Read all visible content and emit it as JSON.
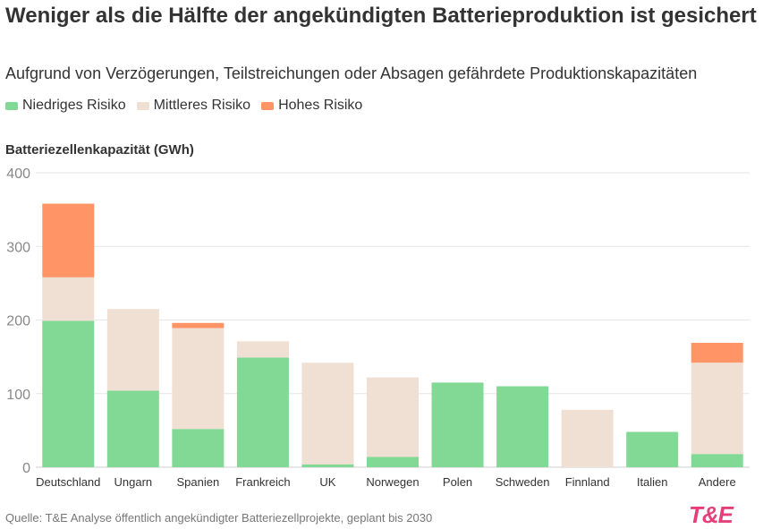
{
  "title": "Weniger als die Hälfte der angekündigten Batterieproduktion ist gesichert",
  "subtitle": "Aufgrund von Verzögerungen, Teilstreichungen oder Absagen gefährdete Produktionskapazitäten",
  "legend": [
    {
      "label": "Niedriges Risiko",
      "color": "#82d895"
    },
    {
      "label": "Mittleres Risiko",
      "color": "#f0e0d4"
    },
    {
      "label": "Hohes Risiko",
      "color": "#ff9566"
    }
  ],
  "source": "Quelle: T&E Analyse öffentlich angekündigter Batteriezellprojekte, geplant bis 2030",
  "logo": "T&E",
  "chart_data": {
    "type": "bar",
    "stacked": true,
    "ylabel": "Batteriezellenkapazität (GWh)",
    "ylim": [
      0,
      400
    ],
    "yticks": [
      0,
      100,
      200,
      300,
      400
    ],
    "grid": true,
    "legend_position": "top-left",
    "categories": [
      "Deutschland",
      "Ungarn",
      "Spanien",
      "Frankreich",
      "UK",
      "Norwegen",
      "Polen",
      "Schweden",
      "Finnland",
      "Italien",
      "Andere"
    ],
    "series": [
      {
        "name": "Niedriges Risiko",
        "color": "#82d895",
        "values": [
          199,
          104,
          52,
          149,
          4,
          14,
          115,
          110,
          0,
          48,
          18
        ]
      },
      {
        "name": "Mittleres Risiko",
        "color": "#f0e0d4",
        "values": [
          59,
          111,
          137,
          22,
          138,
          108,
          0,
          0,
          78,
          0,
          124
        ]
      },
      {
        "name": "Hohes Risiko",
        "color": "#ff9566",
        "values": [
          100,
          0,
          7,
          0,
          0,
          0,
          0,
          0,
          0,
          0,
          27
        ]
      }
    ]
  }
}
